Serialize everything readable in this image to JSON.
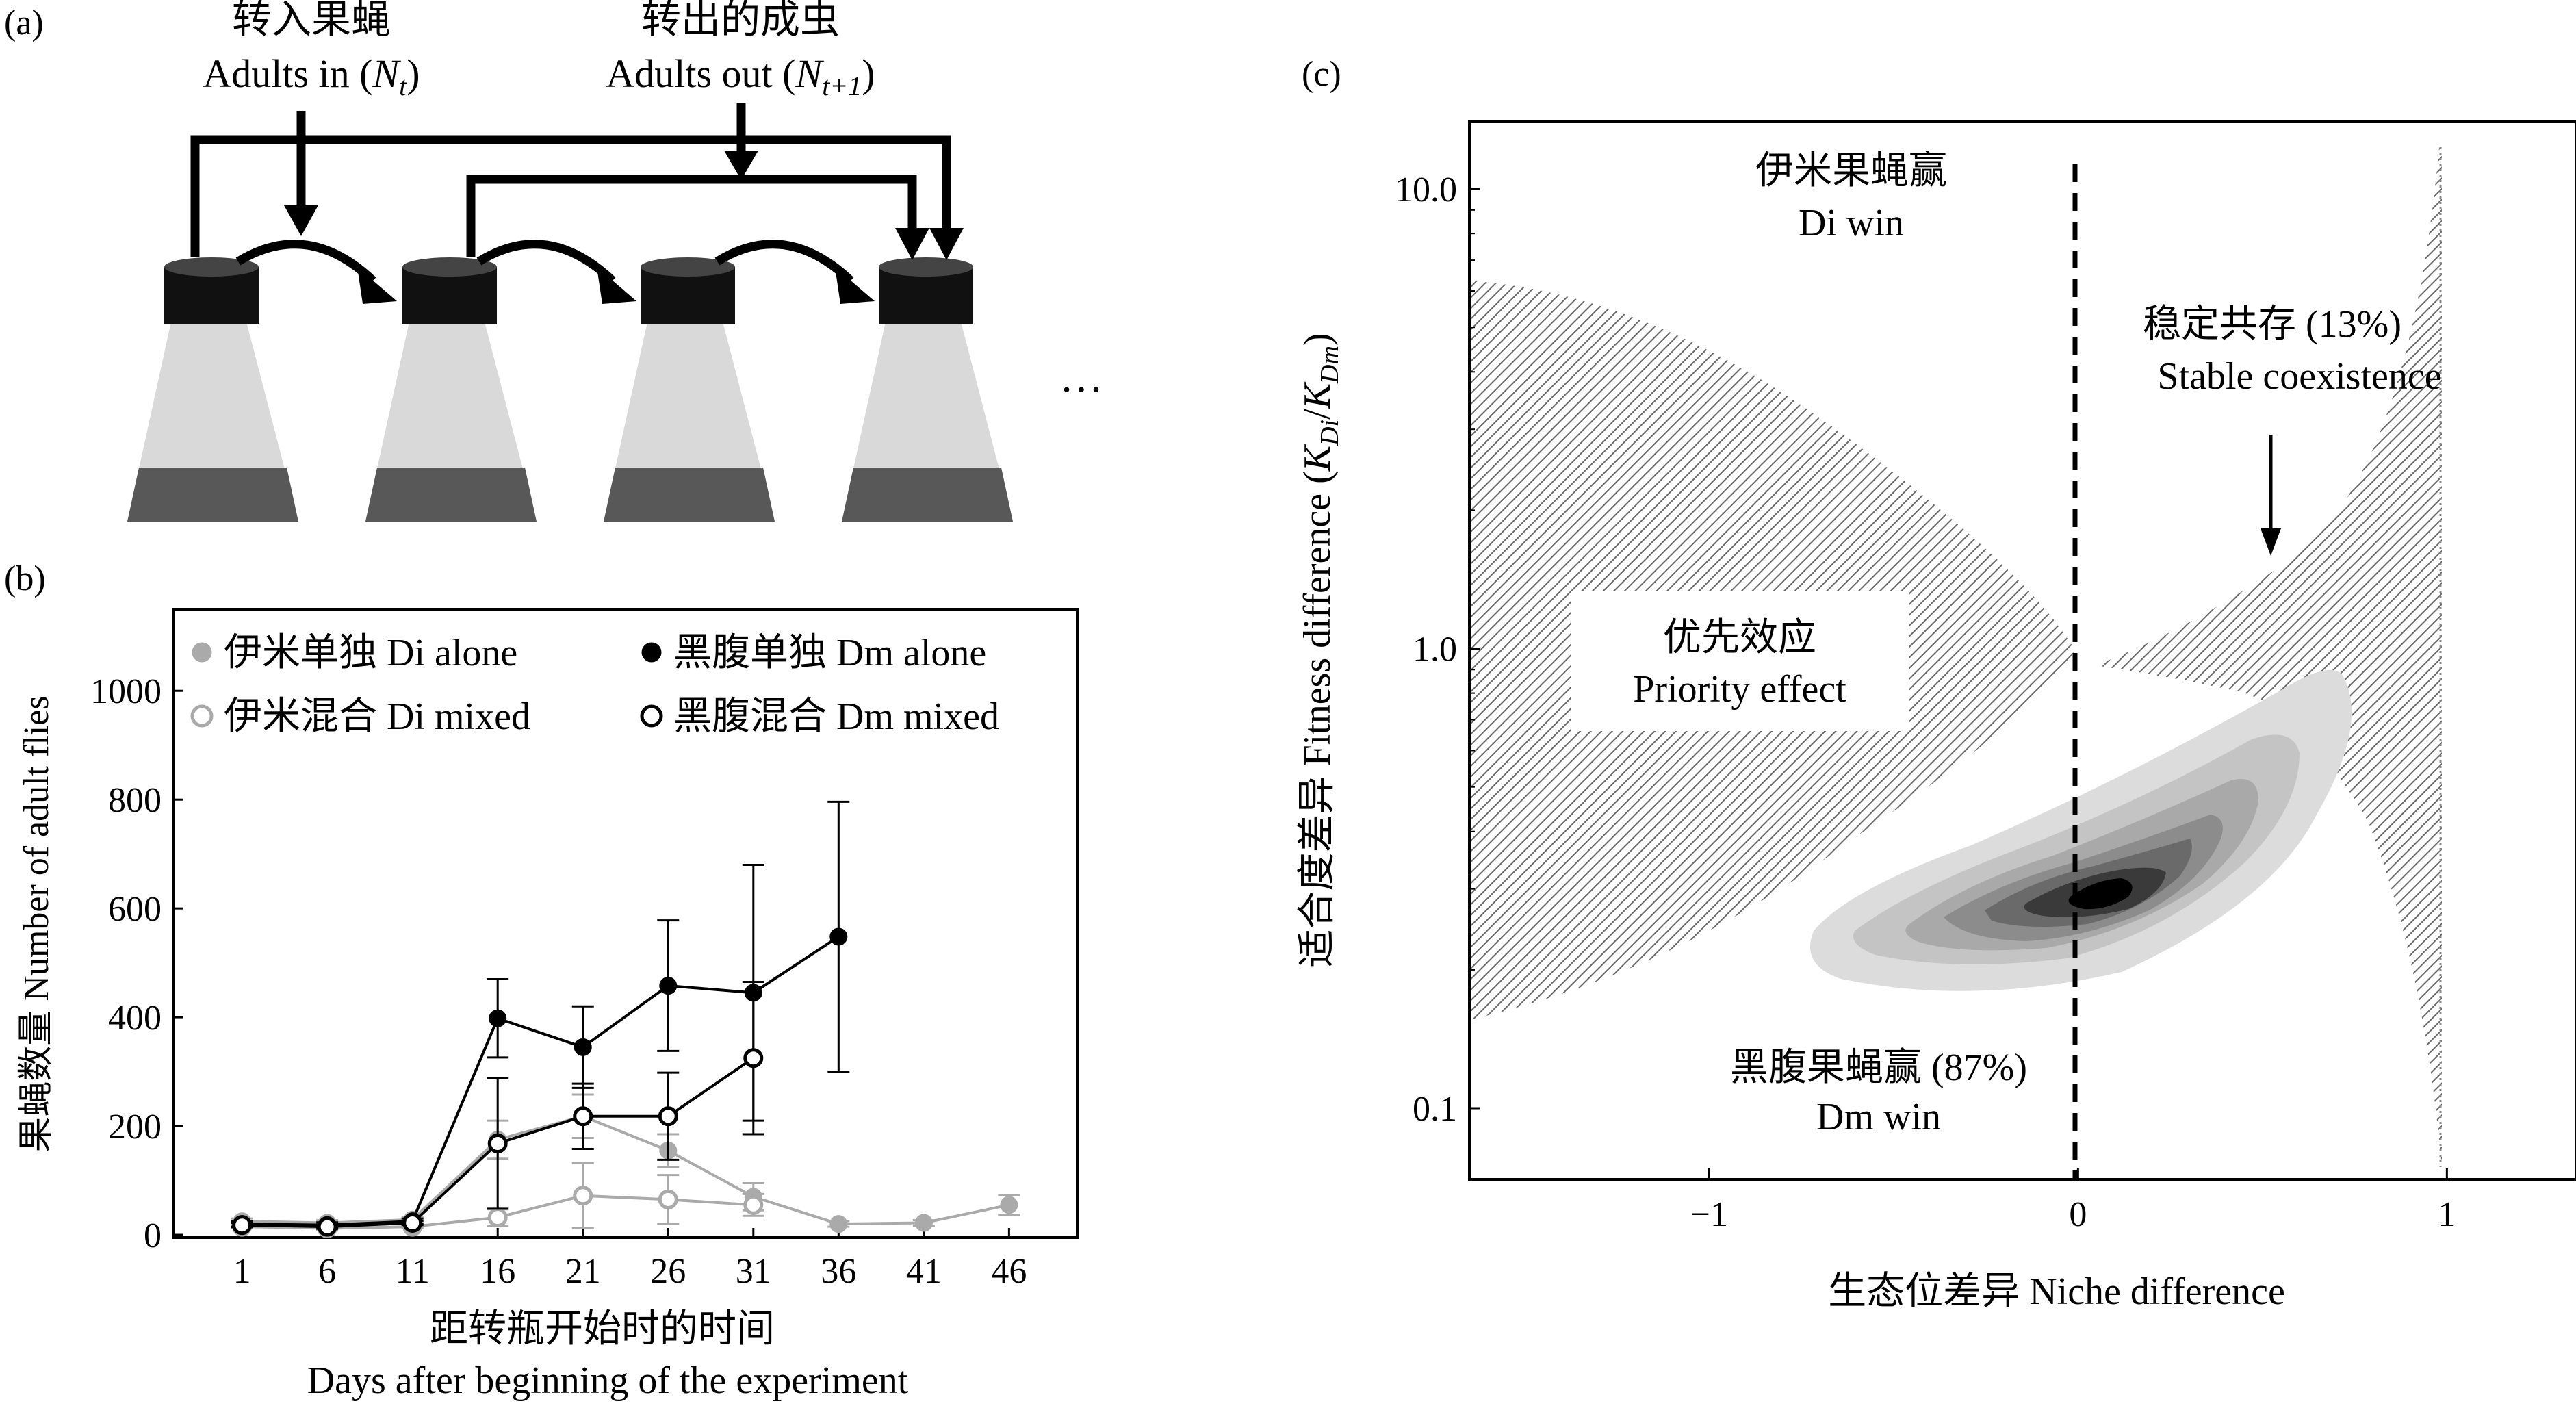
{
  "panel_a": {
    "label": "(a)",
    "in_cn": "转入果蝇",
    "in_en": "Adults in (",
    "in_var": "N",
    "in_sub": "t",
    "out_cn": "转出的成虫",
    "out_en": "Adults out (",
    "out_var": "N",
    "out_sub": "t+1",
    "close_paren": ")",
    "ellipsis": "…"
  },
  "chart_data": [
    {
      "panel": "(b)",
      "type": "line",
      "ylabel": "果蝇数量 Number of adult flies",
      "xlabel_cn": "距转瓶开始时的时间",
      "xlabel_en": "Days after beginning of the experiment",
      "x": [
        1,
        6,
        11,
        16,
        21,
        26,
        31,
        36,
        41,
        46
      ],
      "xlim": [
        -3,
        50
      ],
      "ylim": [
        -5,
        1150
      ],
      "yticks": [
        0,
        200,
        400,
        600,
        800,
        1000
      ],
      "legend_position": "top",
      "series": [
        {
          "name": "伊米单独 Di alone",
          "marker": "filled",
          "color": "#aaaaaa",
          "x": [
            1,
            6,
            11,
            16,
            21,
            26,
            31,
            36,
            41,
            46
          ],
          "y": [
            25,
            22,
            28,
            175,
            218,
            155,
            70,
            20,
            22,
            55
          ],
          "err": [
            5,
            5,
            5,
            35,
            40,
            30,
            25,
            5,
            5,
            18
          ]
        },
        {
          "name": "伊米混合 Di mixed",
          "marker": "open",
          "color": "#aaaaaa",
          "x": [
            1,
            6,
            11,
            16,
            21,
            26,
            31
          ],
          "y": [
            15,
            12,
            15,
            32,
            72,
            65,
            55
          ],
          "err": [
            3,
            3,
            3,
            15,
            60,
            45,
            20
          ]
        },
        {
          "name": "黑腹单独 Dm alone",
          "marker": "filled",
          "color": "#000000",
          "x": [
            1,
            6,
            11,
            16,
            21,
            26,
            31,
            36
          ],
          "y": [
            20,
            18,
            25,
            398,
            345,
            458,
            445,
            548
          ],
          "err": [
            5,
            5,
            5,
            72,
            75,
            120,
            235,
            248
          ]
        },
        {
          "name": "黑腹混合 Dm mixed",
          "marker": "open",
          "color": "#000000",
          "x": [
            1,
            6,
            11,
            16,
            21,
            26,
            31
          ],
          "y": [
            18,
            15,
            22,
            168,
            218,
            218,
            325
          ],
          "err": [
            4,
            4,
            4,
            120,
            60,
            80,
            140
          ]
        }
      ]
    },
    {
      "panel": "(c)",
      "type": "heatmap",
      "xlabel": "生态位差异 Niche difference",
      "ylabel_cn": "适合度差异 Fitness difference (",
      "ylabel_var_k1": "K",
      "ylabel_sub1": "Di",
      "ylabel_slash": "/",
      "ylabel_var_k2": "K",
      "ylabel_sub2": "Dm",
      "ylabel_close": ")",
      "xlim": [
        -1.65,
        1.35
      ],
      "ylim": [
        0.07,
        14
      ],
      "yscale": "log",
      "xticks": [
        -1,
        0,
        1
      ],
      "xtick_labels": [
        "−1",
        "0",
        "1"
      ],
      "yticks": [
        0.1,
        1.0,
        10.0
      ],
      "ytick_labels": [
        "0.1",
        "1.0",
        "10.0"
      ],
      "contour_peak": {
        "x": 0.12,
        "y": 0.33
      },
      "contour_levels": 7,
      "regions": {
        "di_win_cn": "伊米果蝇赢",
        "di_win_en": "Di win",
        "coexist_cn": "稳定共存 (13%)",
        "coexist_en": "Stable coexistence",
        "priority_cn": "优先效应",
        "priority_en": "Priority effect",
        "dm_win_cn": "黑腹果蝇赢 (87%)",
        "dm_win_en": "Dm win"
      }
    }
  ]
}
